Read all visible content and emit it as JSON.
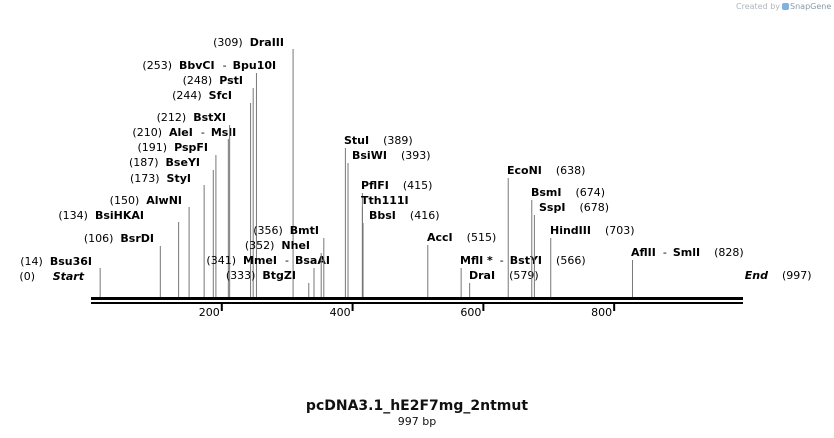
{
  "credit": {
    "prefix": "Created by",
    "brand": "SnapGene"
  },
  "map": {
    "name": "pcDNA3.1_hE2F7mg_2ntmut",
    "length_label": "997 bp",
    "length": 997,
    "ticks": [
      "200",
      "400",
      "600",
      "800"
    ],
    "tick_values": [
      200,
      400,
      600,
      800
    ]
  },
  "features": [
    {
      "id": "start",
      "pos_label": "(0)",
      "name": "Start",
      "pos": 0,
      "italic": true
    },
    {
      "id": "bsu36i",
      "pos_label": "(14)",
      "name": "Bsu36I",
      "pos": 14
    },
    {
      "id": "bsrdi",
      "pos_label": "(106)",
      "name": "BsrDI",
      "pos": 106
    },
    {
      "id": "bsihkai",
      "pos_label": "(134)",
      "name": "BsiHKAI",
      "pos": 134
    },
    {
      "id": "alwni",
      "pos_label": "(150)",
      "name": "AlwNI",
      "pos": 150
    },
    {
      "id": "styi",
      "pos_label": "(173)",
      "name": "StyI",
      "pos": 173
    },
    {
      "id": "bseyi",
      "pos_label": "(187)",
      "name": "BseYI",
      "pos": 187
    },
    {
      "id": "pspfi",
      "pos_label": "(191)",
      "name": "PspFI",
      "pos": 191
    },
    {
      "id": "alei",
      "pos_label": "(210)",
      "name": "AleI",
      "suffix": "MslI",
      "pos": 210
    },
    {
      "id": "bstxi",
      "pos_label": "(212)",
      "name": "BstXI",
      "pos": 212
    },
    {
      "id": "sfci",
      "pos_label": "(244)",
      "name": "SfcI",
      "pos": 244
    },
    {
      "id": "psti",
      "pos_label": "(248)",
      "name": "PstI",
      "pos": 248
    },
    {
      "id": "bbvci",
      "pos_label": "(253)",
      "name": "BbvCI",
      "suffix": "Bpu10I",
      "pos": 253
    },
    {
      "id": "draiii",
      "pos_label": "(309)",
      "name": "DraIII",
      "pos": 309
    },
    {
      "id": "mmei",
      "pos_label": "(341)",
      "name": "MmeI",
      "suffix": "BsaAI",
      "pos": 341
    },
    {
      "id": "btgzi",
      "pos_label": "(333)",
      "name": "BtgZI",
      "pos": 333
    },
    {
      "id": "nhei",
      "pos_label": "(352)",
      "name": "NheI",
      "pos": 352
    },
    {
      "id": "bmti",
      "pos_label": "(356)",
      "name": "BmtI",
      "pos": 356
    },
    {
      "id": "stui",
      "name": "StuI",
      "pos_label": "(389)",
      "pos": 389
    },
    {
      "id": "bsiwi",
      "name": "BsiWI",
      "pos_label": "(393)",
      "pos": 393
    },
    {
      "id": "pflfi",
      "name": "PflFI",
      "pos_label": "(415)",
      "pos": 415
    },
    {
      "id": "tth111i",
      "name": "Tth111I",
      "pos": 415
    },
    {
      "id": "bbsi",
      "name": "BbsI",
      "pos_label": "(416)",
      "pos": 416
    },
    {
      "id": "acci",
      "name": "AccI",
      "pos_label": "(515)",
      "pos": 515
    },
    {
      "id": "mfli",
      "name": "MflI *",
      "suffix": "BstYI",
      "pos_label": "(566)",
      "pos": 566
    },
    {
      "id": "drai",
      "name": "DraI",
      "pos_label": "(579)",
      "pos": 579
    },
    {
      "id": "econi",
      "name": "EcoNI",
      "pos_label": "(638)",
      "pos": 638
    },
    {
      "id": "bsmi",
      "name": "BsmI",
      "pos_label": "(674)",
      "pos": 674
    },
    {
      "id": "sspi",
      "name": "SspI",
      "pos_label": "(678)",
      "pos": 678
    },
    {
      "id": "hindiii",
      "name": "HindIII",
      "pos_label": "(703)",
      "pos": 703
    },
    {
      "id": "aflii",
      "name": "AflII",
      "suffix": "SmlI",
      "pos_label": "(828)",
      "pos": 828
    },
    {
      "id": "end",
      "name": "End",
      "pos_label": "(997)",
      "pos": 997,
      "italic": true
    }
  ]
}
